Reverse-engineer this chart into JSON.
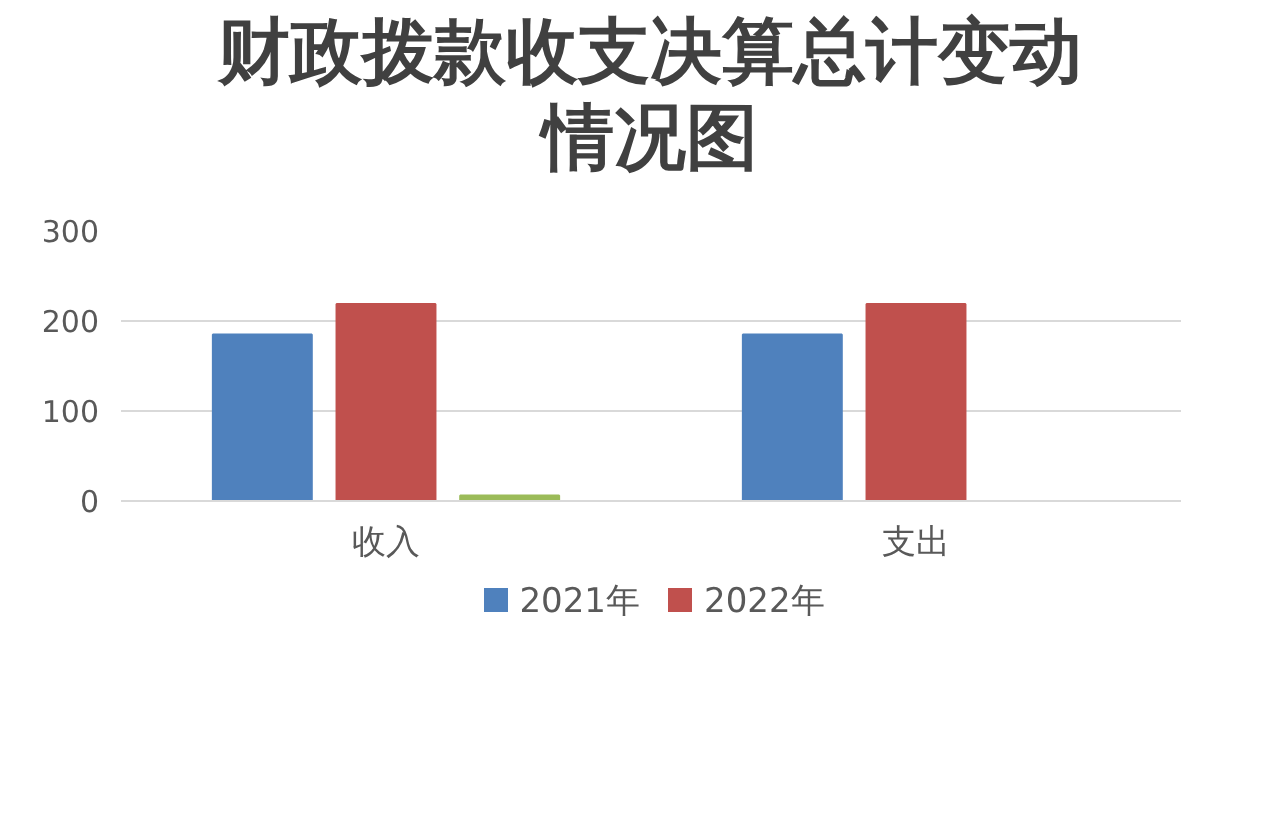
{
  "chart_data": {
    "type": "bar",
    "title": "财政拨款收支决算总计变动情况图",
    "categories": [
      "收入",
      "支出"
    ],
    "series": [
      {
        "name": "2021年",
        "color": "#4f81bd",
        "values": [
          185,
          185
        ]
      },
      {
        "name": "2022年",
        "color": "#c0504d",
        "values": [
          219,
          219
        ]
      },
      {
        "color": "#9bbb59",
        "values": [
          6,
          null
        ]
      }
    ],
    "ylim": [
      0,
      300
    ],
    "yticks": [
      0,
      100,
      200,
      300
    ],
    "grid": "y",
    "legend": "bottom"
  }
}
